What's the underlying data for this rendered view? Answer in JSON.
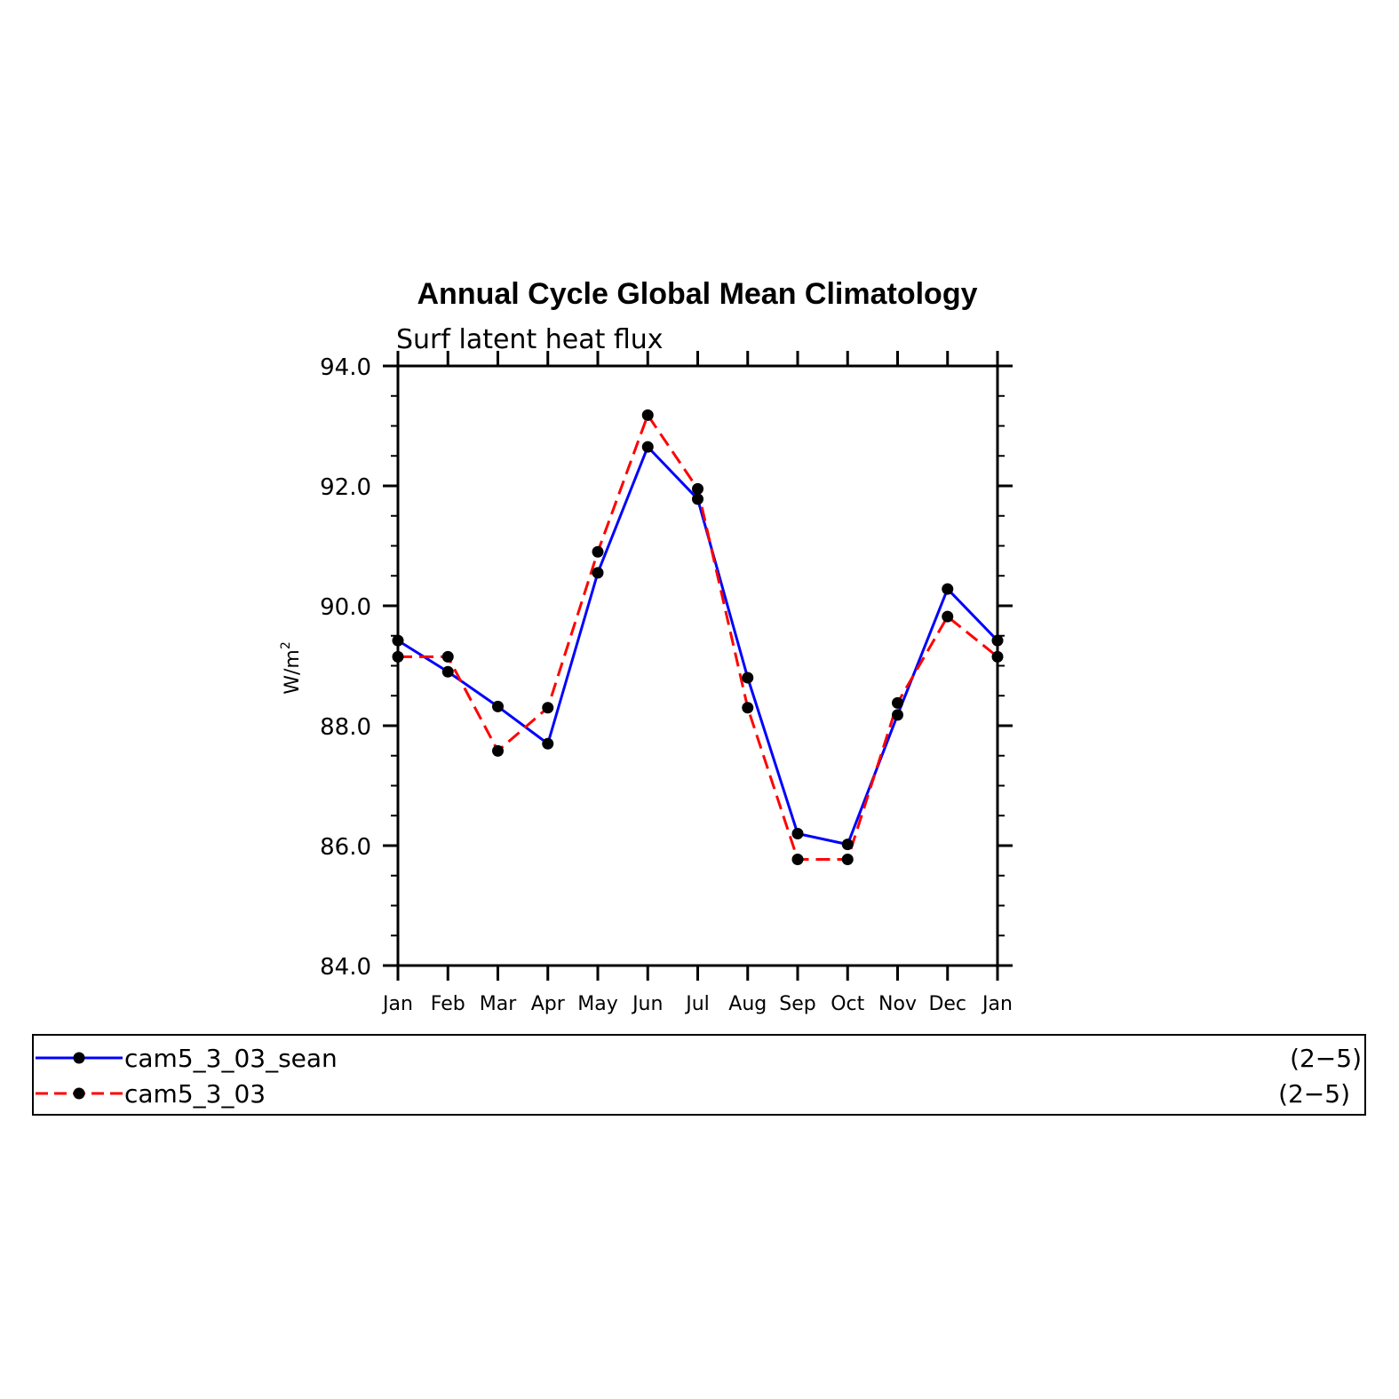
{
  "chart_data": {
    "type": "line",
    "title": "Annual Cycle Global Mean Climatology",
    "subtitle": "Surf latent heat flux",
    "ylabel": "W/m",
    "ylabel_sup": "2",
    "xlabel": "",
    "categories": [
      "Jan",
      "Feb",
      "Mar",
      "Apr",
      "May",
      "Jun",
      "Jul",
      "Aug",
      "Sep",
      "Oct",
      "Nov",
      "Dec",
      "Jan"
    ],
    "ylim": [
      84.0,
      94.0
    ],
    "yticks": [
      "84.0",
      "86.0",
      "88.0",
      "90.0",
      "92.0",
      "94.0"
    ],
    "grid": false,
    "legend_position": "bottom",
    "series": [
      {
        "name": "cam5_3_03_sean",
        "range": "(2−5)",
        "color": "#0000ff",
        "dash": "solid",
        "values": [
          89.42,
          88.9,
          88.32,
          87.7,
          90.55,
          92.65,
          91.78,
          88.8,
          86.2,
          86.02,
          88.18,
          90.28,
          89.42
        ]
      },
      {
        "name": "cam5_3_03",
        "range": "(2−5)",
        "color": "#ff0000",
        "dash": "dashed",
        "values": [
          89.15,
          89.15,
          87.58,
          88.3,
          90.9,
          93.18,
          91.95,
          88.3,
          85.77,
          85.77,
          88.38,
          89.82,
          89.15
        ]
      }
    ]
  }
}
